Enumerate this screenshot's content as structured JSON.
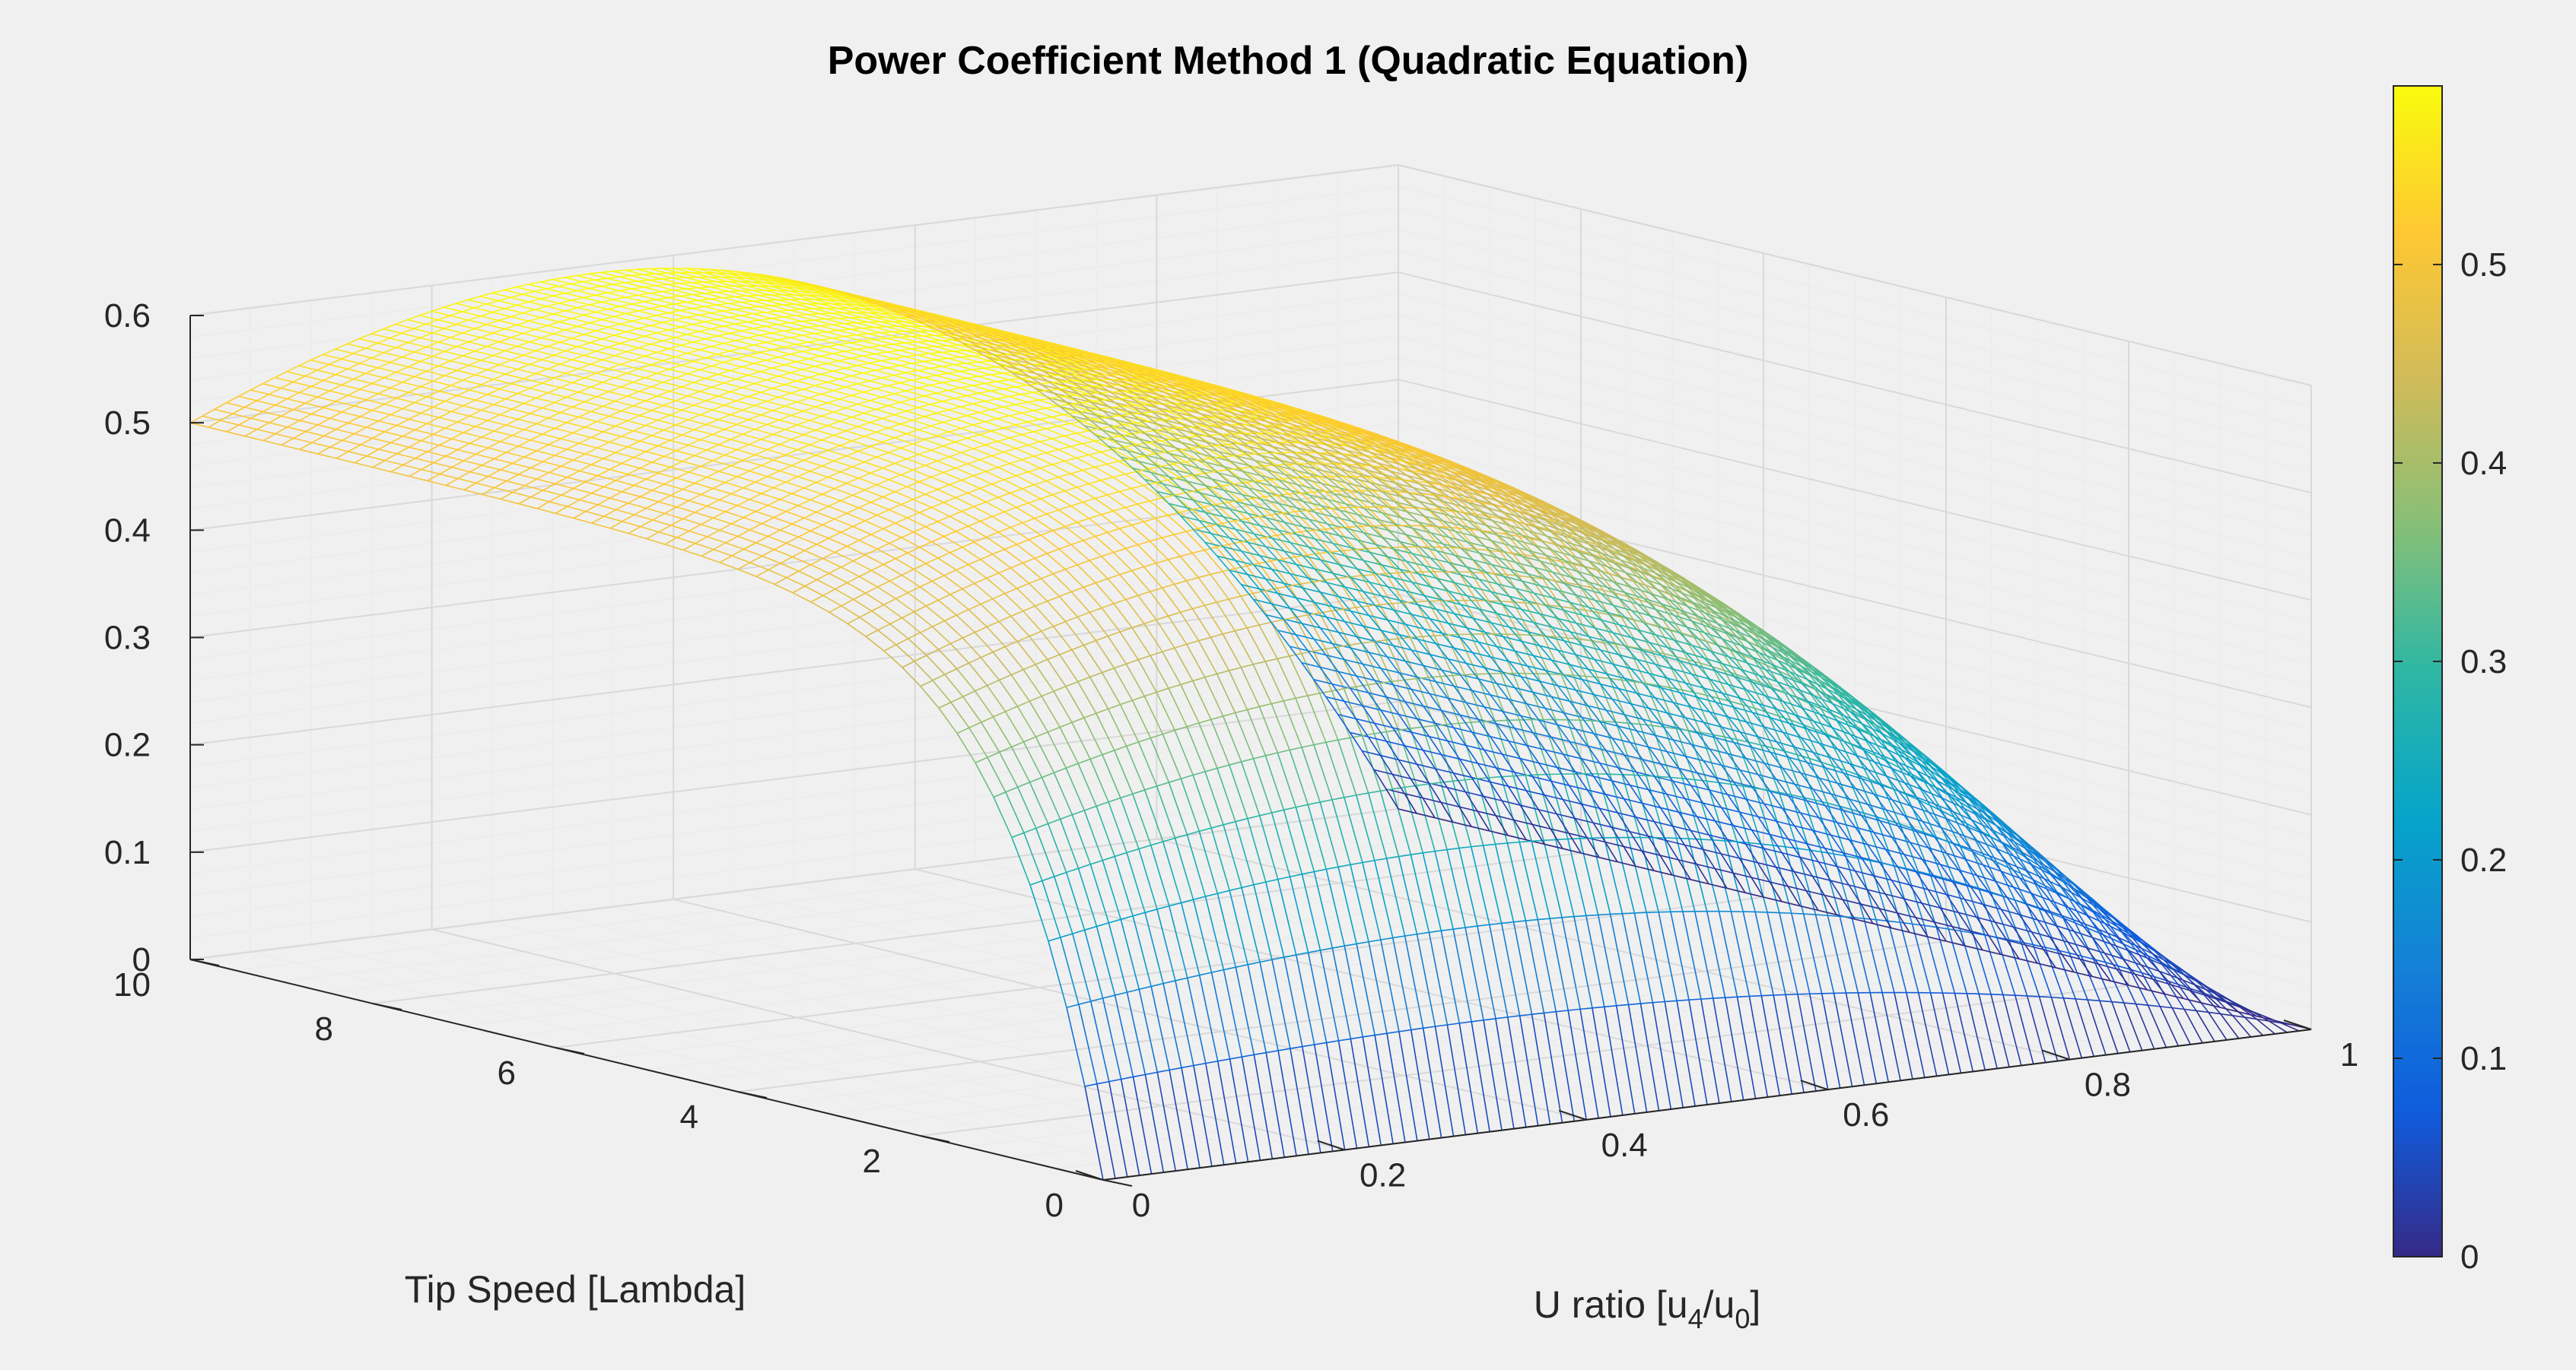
{
  "chart_data": {
    "type": "surface",
    "title": "Power Coefficient Method 1 (Quadratic Equation)",
    "xlabel": "U ratio [u4/u0]",
    "xlabel_parts": {
      "main": "U ratio [u",
      "sub1": "4",
      "mid": "/u",
      "sub2": "0",
      "end": "]"
    },
    "ylabel": "Tip Speed [Lambda]",
    "zlabel": "",
    "xlim": [
      0,
      1
    ],
    "ylim": [
      0,
      10
    ],
    "zlim": [
      0,
      0.6
    ],
    "x_ticks": [
      "0",
      "0.2",
      "0.4",
      "0.6",
      "0.8",
      "1"
    ],
    "y_ticks": [
      "0",
      "2",
      "4",
      "6",
      "8",
      "10"
    ],
    "z_ticks": [
      "0",
      "0.1",
      "0.2",
      "0.3",
      "0.4",
      "0.5",
      "0.6"
    ],
    "colorbar": {
      "colormap": "parula",
      "clim": [
        0,
        0.59
      ],
      "ticks": [
        "0",
        "0.1",
        "0.2",
        "0.3",
        "0.4",
        "0.5"
      ]
    },
    "grid": true,
    "surface_model": "Cp = 0.5 * (1 - r^2) * (1 + r) * (1 - exp(-lambda / 1.1))",
    "samples": {
      "r": [
        0,
        0.2,
        0.333,
        0.4,
        0.6,
        0.8,
        1
      ],
      "lambda_0": [
        0,
        0,
        0,
        0,
        0,
        0,
        0
      ],
      "lambda_2": [
        0.42,
        0.48,
        0.5,
        0.5,
        0.43,
        0.27,
        0
      ],
      "lambda_10": [
        0.5,
        0.58,
        0.59,
        0.59,
        0.51,
        0.32,
        0
      ]
    }
  }
}
